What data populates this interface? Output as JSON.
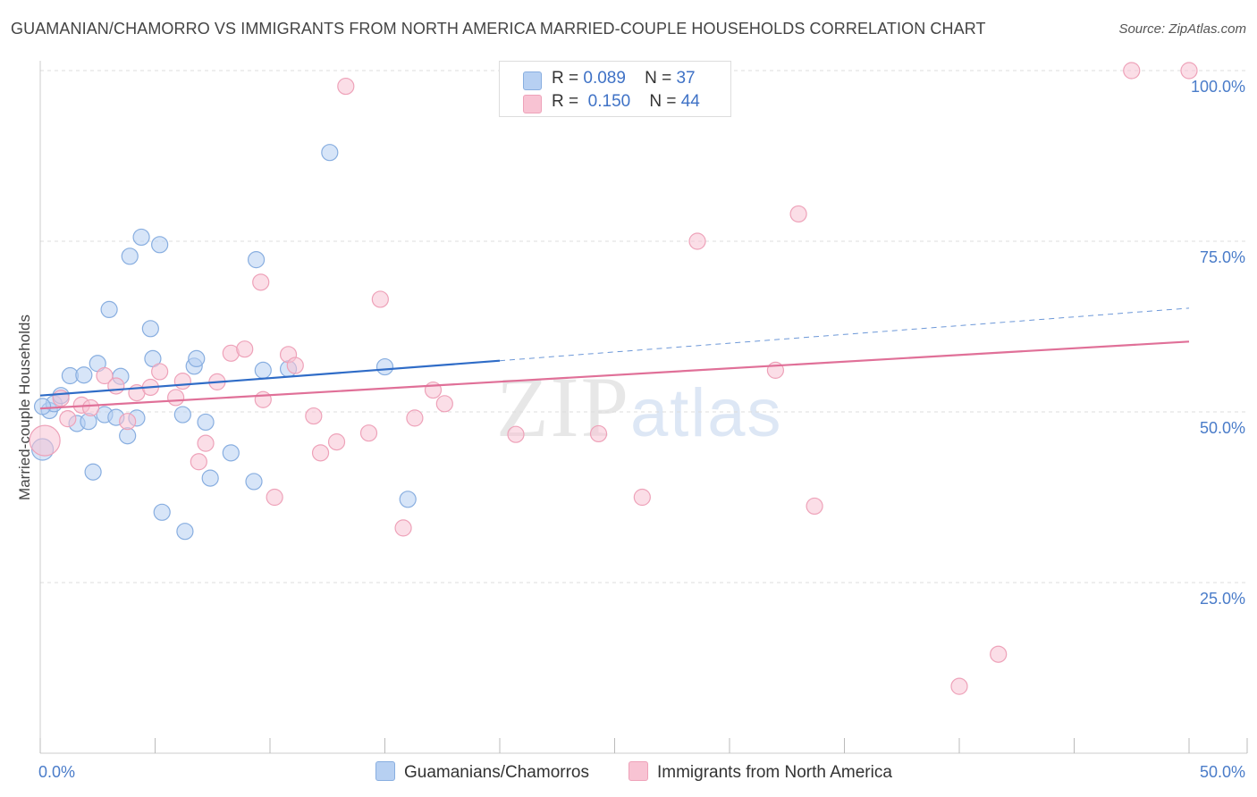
{
  "title": "GUAMANIAN/CHAMORRO VS IMMIGRANTS FROM NORTH AMERICA MARRIED-COUPLE HOUSEHOLDS CORRELATION CHART",
  "source": "Source: ZipAtlas.com",
  "watermark": {
    "zip": "ZIP",
    "atlas": "atlas"
  },
  "legend": {
    "rows": [
      {
        "r_label": "R =",
        "r_value": "0.089",
        "n_label": "N =",
        "n_value": "37"
      },
      {
        "r_label": "R =",
        "r_value": "0.150",
        "n_label": "N =",
        "n_value": "44"
      }
    ]
  },
  "bottom_legend": {
    "series1": "Guamanians/Chamorros",
    "series2": "Immigrants from North America"
  },
  "colors": {
    "blue_fill": "#b7d0f2",
    "blue_stroke": "#88aee0",
    "blue_line": "#2f6cc7",
    "pink_fill": "#f8c3d3",
    "pink_stroke": "#eea2b9",
    "pink_line": "#e07098",
    "tick_text": "#4a7cc9",
    "grid": "#dddddd"
  },
  "chart_data": {
    "type": "scatter",
    "title": "GUAMANIAN/CHAMORRO VS IMMIGRANTS FROM NORTH AMERICA MARRIED-COUPLE HOUSEHOLDS CORRELATION CHART",
    "xlabel": "",
    "ylabel": "Married-couple Households",
    "xlim": [
      0,
      50
    ],
    "ylim": [
      0,
      101
    ],
    "x_tick_labels": [
      "0.0%",
      "50.0%"
    ],
    "y_ticks": [
      25,
      50,
      75,
      100
    ],
    "y_tick_labels": [
      "25.0%",
      "50.0%",
      "75.0%",
      "100.0%"
    ],
    "grid": true,
    "legend_position": "top-center",
    "series": [
      {
        "name": "Guamanians/Chamorros",
        "color": "#b7d0f2",
        "R": 0.089,
        "N": 37,
        "trend": {
          "x": [
            0,
            20
          ],
          "y": [
            52.4,
            57.5
          ],
          "dashed_to": [
            50,
            65.2
          ]
        },
        "points": [
          [
            0.1,
            44.5,
            12
          ],
          [
            0.4,
            50.2,
            9
          ],
          [
            0.6,
            51.2,
            9
          ],
          [
            0.9,
            52.4,
            9
          ],
          [
            1.3,
            55.3,
            9
          ],
          [
            1.6,
            48.3,
            9
          ],
          [
            1.9,
            55.4,
            9
          ],
          [
            2.1,
            48.6,
            9
          ],
          [
            2.3,
            41.2,
            9
          ],
          [
            2.5,
            57.1,
            9
          ],
          [
            2.8,
            49.6,
            9
          ],
          [
            3.0,
            65.0,
            9
          ],
          [
            3.3,
            49.2,
            9
          ],
          [
            3.5,
            55.2,
            9
          ],
          [
            3.8,
            46.5,
            9
          ],
          [
            3.9,
            72.8,
            9
          ],
          [
            4.2,
            49.1,
            9
          ],
          [
            4.4,
            75.6,
            9
          ],
          [
            4.8,
            62.2,
            9
          ],
          [
            4.9,
            57.8,
            9
          ],
          [
            5.2,
            74.5,
            9
          ],
          [
            5.3,
            35.3,
            9
          ],
          [
            6.2,
            49.6,
            9
          ],
          [
            6.3,
            32.5,
            9
          ],
          [
            6.7,
            56.7,
            9
          ],
          [
            6.8,
            57.8,
            9
          ],
          [
            7.2,
            48.5,
            9
          ],
          [
            7.4,
            40.3,
            9
          ],
          [
            8.3,
            44.0,
            9
          ],
          [
            9.3,
            39.8,
            9
          ],
          [
            9.4,
            72.3,
            9
          ],
          [
            9.7,
            56.1,
            9
          ],
          [
            10.8,
            56.3,
            9
          ],
          [
            12.6,
            88.0,
            9
          ],
          [
            15.0,
            56.6,
            9
          ],
          [
            16.0,
            37.2,
            9
          ],
          [
            0.1,
            50.8,
            9
          ]
        ]
      },
      {
        "name": "Immigrants from North America",
        "color": "#f8c3d3",
        "R": 0.15,
        "N": 44,
        "trend": {
          "x": [
            0,
            50
          ],
          "y": [
            50.5,
            60.3
          ]
        },
        "points": [
          [
            0.2,
            45.8,
            17
          ],
          [
            0.9,
            52.0,
            9
          ],
          [
            1.2,
            49.0,
            9
          ],
          [
            1.8,
            51.0,
            9
          ],
          [
            2.2,
            50.6,
            9
          ],
          [
            2.8,
            55.3,
            9
          ],
          [
            3.3,
            53.8,
            9
          ],
          [
            3.8,
            48.6,
            9
          ],
          [
            4.2,
            52.8,
            9
          ],
          [
            4.8,
            53.6,
            9
          ],
          [
            5.2,
            55.9,
            9
          ],
          [
            5.9,
            52.1,
            9
          ],
          [
            6.2,
            54.5,
            9
          ],
          [
            6.9,
            42.7,
            9
          ],
          [
            7.2,
            45.4,
            9
          ],
          [
            7.7,
            54.4,
            9
          ],
          [
            8.3,
            58.6,
            9
          ],
          [
            8.9,
            59.2,
            9
          ],
          [
            9.6,
            69.0,
            9
          ],
          [
            9.7,
            51.8,
            9
          ],
          [
            10.2,
            37.5,
            9
          ],
          [
            10.8,
            58.4,
            9
          ],
          [
            11.1,
            56.8,
            9
          ],
          [
            11.9,
            49.4,
            9
          ],
          [
            12.2,
            44.0,
            9
          ],
          [
            12.9,
            45.6,
            9
          ],
          [
            13.3,
            97.7,
            9
          ],
          [
            14.3,
            46.9,
            9
          ],
          [
            14.8,
            66.5,
            9
          ],
          [
            15.8,
            33.0,
            9
          ],
          [
            16.3,
            49.1,
            9
          ],
          [
            17.1,
            53.2,
            9
          ],
          [
            17.6,
            51.2,
            9
          ],
          [
            20.7,
            46.7,
            9
          ],
          [
            24.3,
            46.8,
            9
          ],
          [
            26.2,
            37.5,
            9
          ],
          [
            28.6,
            75.0,
            9
          ],
          [
            32.0,
            56.1,
            9
          ],
          [
            33.0,
            79.0,
            9
          ],
          [
            33.7,
            36.2,
            9
          ],
          [
            40.0,
            9.8,
            9
          ],
          [
            41.7,
            14.5,
            9
          ],
          [
            47.5,
            100.0,
            9
          ],
          [
            50.0,
            100.0,
            9
          ]
        ]
      }
    ]
  }
}
